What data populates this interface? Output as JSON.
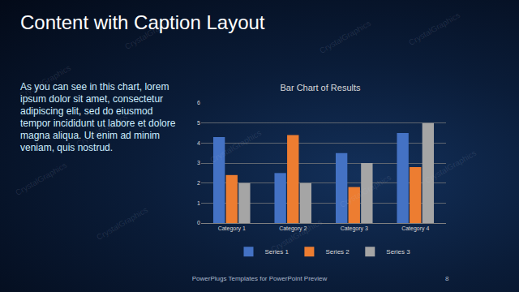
{
  "slide": {
    "title": "Content with Caption Layout",
    "caption": "As you can see in this chart, lorem ipsum dolor sit amet, consectetur adipiscing elit, sed do eiusmod tempor incididunt ut labore et dolore magna aliqua. Ut enim ad minim veniam, quis nostrud.",
    "footer": "PowerPlugs Templates for PowerPoint Preview",
    "page": 8,
    "watermark": "CrystalGraphics"
  },
  "chart_data": {
    "type": "bar",
    "title": "Bar Chart of Results",
    "categories": [
      "Category 1",
      "Category 2",
      "Category 3",
      "Category 4"
    ],
    "series": [
      {
        "name": "Series 1",
        "color": "#4472c4",
        "values": [
          4.3,
          2.5,
          3.5,
          4.5
        ]
      },
      {
        "name": "Series 2",
        "color": "#ed7d31",
        "values": [
          2.4,
          4.4,
          1.8,
          2.8
        ]
      },
      {
        "name": "Series 3",
        "color": "#a5a5a5",
        "values": [
          2,
          2,
          3,
          5
        ]
      }
    ],
    "ylim": [
      0,
      6
    ],
    "yticks": [
      0,
      1,
      2,
      3,
      4,
      5,
      6
    ],
    "grid": true,
    "legend": "bottom"
  }
}
